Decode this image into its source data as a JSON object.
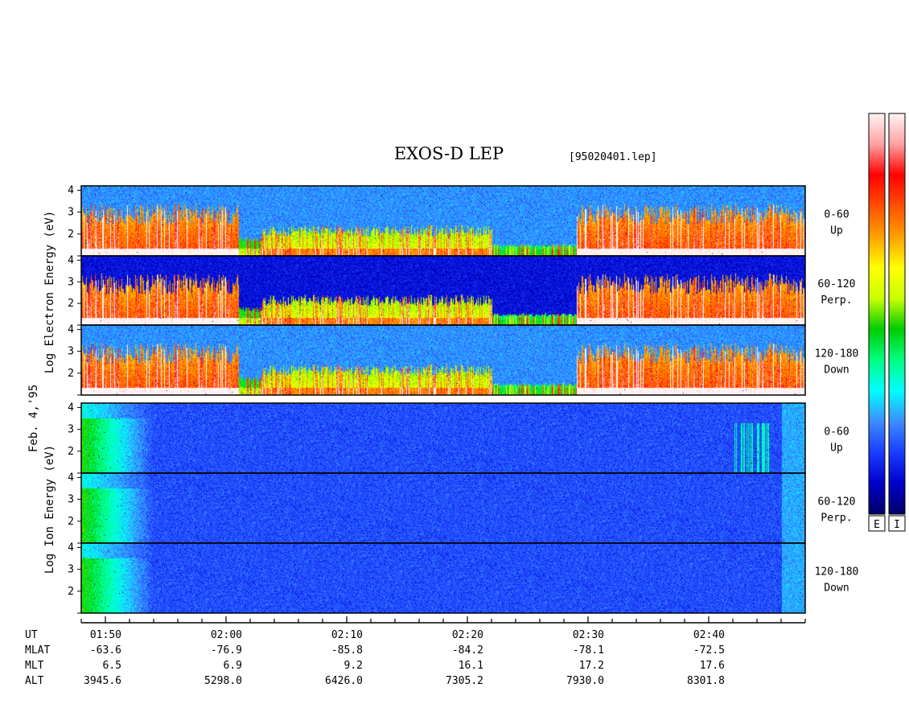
{
  "chart_data": {
    "type": "heatmap",
    "title": "EXOS-D LEP",
    "file_label": "[95020401.lep]",
    "date_label": "Feb. 4,'95",
    "x_axis": {
      "quantity": "UT",
      "tick_labels": [
        "01:50",
        "02:00",
        "02:10",
        "02:20",
        "02:30",
        "02:40"
      ],
      "range": [
        "01:48",
        "02:48"
      ],
      "minor_tick_minutes": 2
    },
    "ephemeris": [
      {
        "label": "UT",
        "values": [
          "01:50",
          "02:00",
          "02:10",
          "02:20",
          "02:30",
          "02:40"
        ]
      },
      {
        "label": "MLAT",
        "values": [
          "-63.6",
          "-76.9",
          "-85.8",
          "-84.2",
          "-78.1",
          "-72.5"
        ]
      },
      {
        "label": "MLT",
        "values": [
          "6.5",
          "6.9",
          "9.2",
          "16.1",
          "17.2",
          "17.6"
        ]
      },
      {
        "label": "ALT",
        "values": [
          "3945.6",
          "5298.0",
          "6426.0",
          "7305.2",
          "7930.0",
          "8301.8"
        ]
      }
    ],
    "groups": [
      {
        "species": "electron",
        "ylabel": "Log Electron Energy (eV)",
        "panels": [
          {
            "pitch": "0-60",
            "direction": "Up"
          },
          {
            "pitch": "60-120",
            "direction": "Perp."
          },
          {
            "pitch": "120-180",
            "direction": "Down"
          }
        ]
      },
      {
        "species": "ion",
        "ylabel": "Log Ion Energy (eV)",
        "panels": [
          {
            "pitch": "0-60",
            "direction": "Up"
          },
          {
            "pitch": "60-120",
            "direction": "Perp."
          },
          {
            "pitch": "120-180",
            "direction": "Down"
          }
        ]
      }
    ],
    "y_axis": {
      "tick_labels": [
        "4",
        "3",
        "2"
      ],
      "range": [
        1,
        4.2
      ],
      "scale": "log10 energy (eV)"
    },
    "colorbars": [
      {
        "label": "E",
        "species": "electron"
      },
      {
        "label": "I",
        "species": "ion"
      }
    ],
    "colormap": [
      "#000066",
      "#0000cc",
      "#1a3cff",
      "#3c8cff",
      "#00ffff",
      "#00ff80",
      "#00cc00",
      "#c8ff00",
      "#ffff00",
      "#ffa000",
      "#ff5000",
      "#ff0000",
      "#ffa0a0",
      "#fff4f4"
    ],
    "electron_activity_intervals": [
      {
        "from": "01:48",
        "to": "02:01",
        "intensity": "high"
      },
      {
        "from": "02:03",
        "to": "02:22",
        "intensity": "patchy"
      },
      {
        "from": "02:22",
        "to": "02:29",
        "intensity": "low"
      },
      {
        "from": "02:29",
        "to": "02:48",
        "intensity": "high"
      }
    ]
  }
}
